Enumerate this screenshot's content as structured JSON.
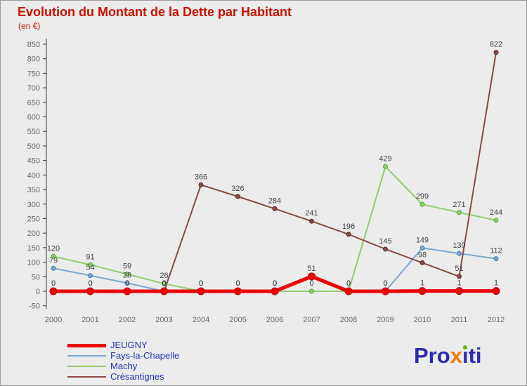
{
  "header": {
    "title": "Evolution du Montant de la Dette par Habitant",
    "subtitle": "(en €)"
  },
  "colors": {
    "background": "#ececec",
    "title": "#cc1100",
    "axis_text": "#666666",
    "axis_line": "#333333",
    "label_text": "#444444",
    "legend_text": "#2233bb"
  },
  "chart_data": {
    "type": "line",
    "title": "Evolution du Montant de la Dette par Habitant",
    "subtitle": "(en €)",
    "x": [
      2000,
      2001,
      2002,
      2003,
      2004,
      2005,
      2006,
      2007,
      2008,
      2009,
      2010,
      2011,
      2012
    ],
    "ylim": [
      -50,
      850
    ],
    "ytick_step": 50,
    "grid": false,
    "legend_position": "bottom-left",
    "series": [
      {
        "name": "JEUGNY",
        "color": "#ee0000",
        "marker_stroke": "#bb0000",
        "line_width": 5,
        "marker_radius": 5,
        "values": [
          0,
          0,
          0,
          0,
          0,
          0,
          0,
          51,
          0,
          0,
          1,
          1,
          1
        ]
      },
      {
        "name": "Fays-la-Chapelle",
        "color": "#7aa6d2",
        "marker_stroke": "#4477aa",
        "line_width": 2,
        "marker_radius": 3,
        "values": [
          79,
          54,
          28,
          0,
          0,
          0,
          0,
          0,
          0,
          0,
          149,
          130,
          112
        ]
      },
      {
        "name": "Machy",
        "color": "#90cc70",
        "marker_stroke": "#55aa33",
        "line_width": 2,
        "marker_radius": 3,
        "values": [
          120,
          91,
          59,
          26,
          0,
          0,
          0,
          0,
          0,
          429,
          299,
          271,
          244
        ]
      },
      {
        "name": "Crésantignes",
        "color": "#8a4a44",
        "marker_stroke": "#5a2a26",
        "line_width": 2,
        "marker_radius": 3,
        "values": [
          0,
          0,
          0,
          0,
          366,
          326,
          284,
          241,
          196,
          145,
          98,
          51,
          822
        ]
      }
    ]
  },
  "logo": {
    "parts": [
      {
        "text": "Pro",
        "color": "#2b2bb4"
      },
      {
        "text": "x",
        "color": "#f57900"
      },
      {
        "text": "ı",
        "color": "#2b2bb4",
        "dot_color": "#66b400"
      },
      {
        "text": "ti",
        "color": "#2b2bb4"
      }
    ]
  }
}
